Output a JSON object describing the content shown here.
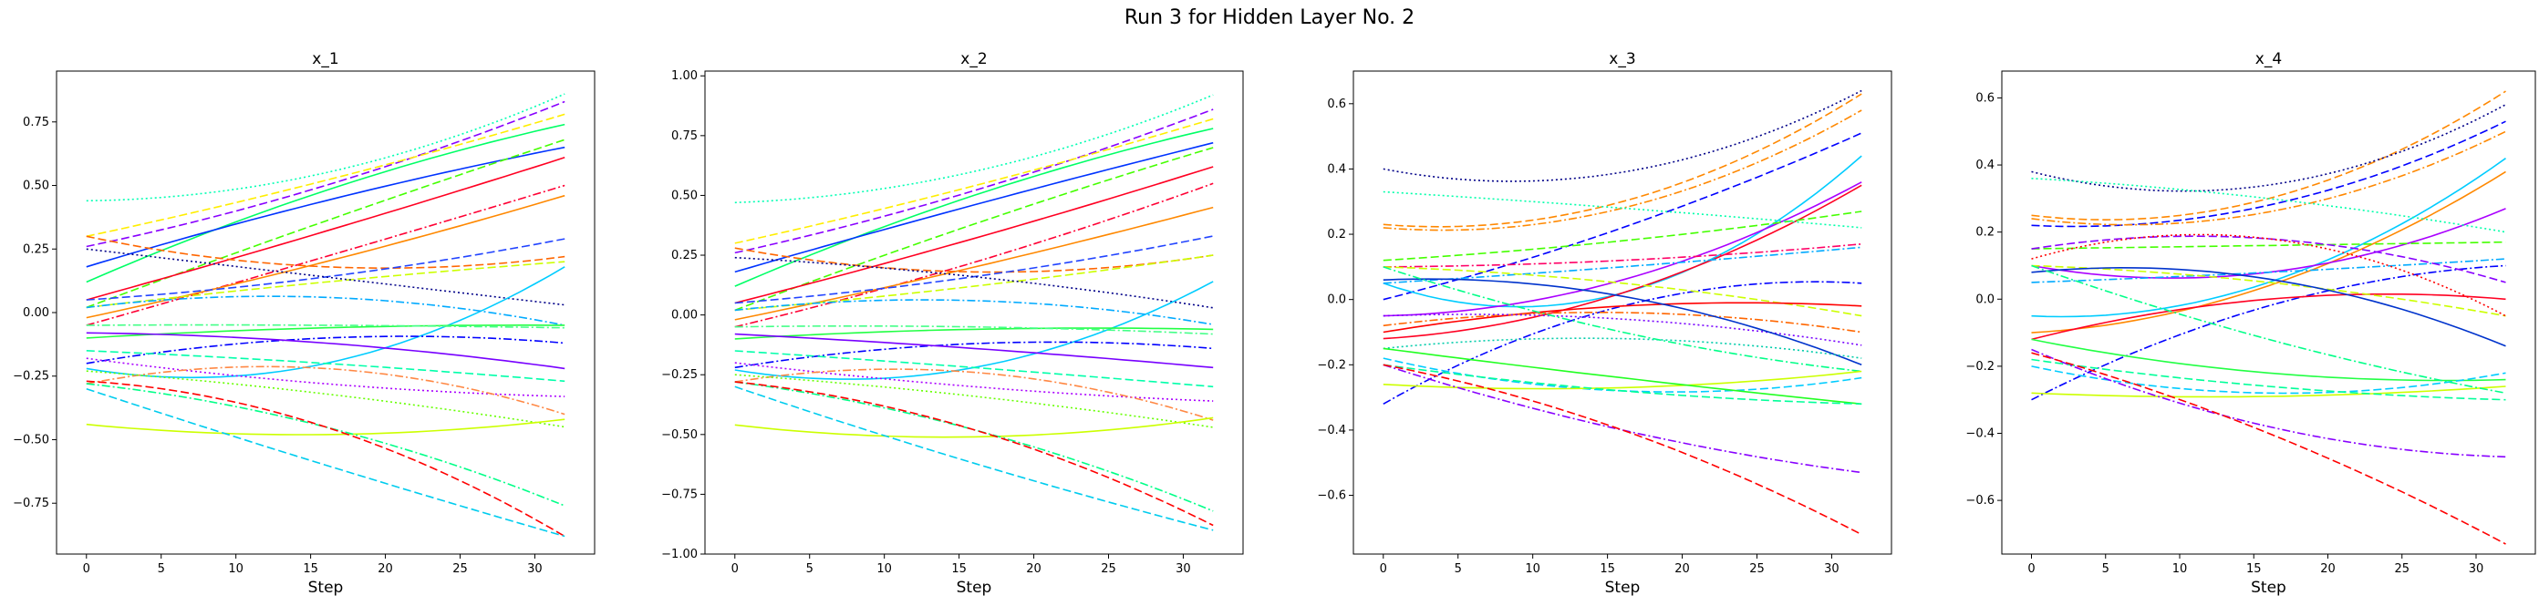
{
  "figure": {
    "title": "Run 3 for Hidden Layer No. 2"
  },
  "chart_data": [
    {
      "type": "line",
      "title": "x_1",
      "xlabel": "Step",
      "ylabel": "",
      "xlim": [
        -2,
        34
      ],
      "ylim": [
        -0.95,
        0.95
      ],
      "xticks": [
        0,
        5,
        10,
        15,
        20,
        25,
        30
      ],
      "yticks": [
        -0.75,
        -0.5,
        -0.25,
        0.0,
        0.25,
        0.5,
        0.75
      ],
      "yticklabels": [
        "−0.75",
        "−0.50",
        "−0.25",
        "0.00",
        "0.25",
        "0.50",
        "0.75"
      ],
      "grid": false,
      "legend": "none",
      "series": [
        {
          "color": "#00ffb3",
          "style": "dotted",
          "start": 0.44,
          "mid": 0.55,
          "end": 0.86
        },
        {
          "color": "#8800ff",
          "style": "dashed",
          "start": 0.26,
          "mid": 0.5,
          "end": 0.83
        },
        {
          "color": "#ffee00",
          "style": "dashed",
          "start": 0.3,
          "mid": 0.52,
          "end": 0.78
        },
        {
          "color": "#00ff66",
          "style": "solid",
          "start": 0.12,
          "mid": 0.48,
          "end": 0.74
        },
        {
          "color": "#0033ff",
          "style": "solid",
          "start": 0.18,
          "mid": 0.44,
          "end": 0.65
        },
        {
          "color": "#44ff00",
          "style": "dashed",
          "start": 0.02,
          "mid": 0.36,
          "end": 0.68
        },
        {
          "color": "#ff0022",
          "style": "solid",
          "start": 0.05,
          "mid": 0.32,
          "end": 0.61
        },
        {
          "color": "#ff0033",
          "style": "dashdot",
          "start": -0.05,
          "mid": 0.22,
          "end": 0.5
        },
        {
          "color": "#ff8800",
          "style": "solid",
          "start": -0.02,
          "mid": 0.2,
          "end": 0.46
        },
        {
          "color": "#ff6600",
          "style": "dashed",
          "start": 0.3,
          "mid": 0.18,
          "end": 0.22
        },
        {
          "color": "#2244ff",
          "style": "dashed",
          "start": 0.05,
          "mid": 0.14,
          "end": 0.29
        },
        {
          "color": "#ccff00",
          "style": "dashed",
          "start": 0.02,
          "mid": 0.12,
          "end": 0.2
        },
        {
          "color": "#000088",
          "style": "dotted",
          "start": 0.25,
          "mid": 0.14,
          "end": 0.03
        },
        {
          "color": "#00ccff",
          "style": "solid",
          "start": -0.22,
          "mid": -0.2,
          "end": 0.18
        },
        {
          "color": "#00aaff",
          "style": "dashdot",
          "start": 0.02,
          "mid": 0.06,
          "end": -0.05
        },
        {
          "color": "#22ff44",
          "style": "solid",
          "start": -0.1,
          "mid": -0.06,
          "end": -0.05
        },
        {
          "color": "#44ff88",
          "style": "dashdot",
          "start": -0.05,
          "mid": -0.05,
          "end": -0.06
        },
        {
          "color": "#0000ff",
          "style": "dashdot",
          "start": -0.2,
          "mid": -0.1,
          "end": -0.12
        },
        {
          "color": "#7700ff",
          "style": "solid",
          "start": -0.08,
          "mid": -0.12,
          "end": -0.22
        },
        {
          "color": "#00ffaa",
          "style": "dashed",
          "start": -0.15,
          "mid": -0.2,
          "end": -0.27
        },
        {
          "color": "#aa00ff",
          "style": "dotted",
          "start": -0.18,
          "mid": -0.28,
          "end": -0.33
        },
        {
          "color": "#ff8844",
          "style": "dashdot",
          "start": -0.28,
          "mid": -0.22,
          "end": -0.4
        },
        {
          "color": "#66ff00",
          "style": "dotted",
          "start": -0.23,
          "mid": -0.32,
          "end": -0.45
        },
        {
          "color": "#ccff00",
          "style": "solid",
          "start": -0.44,
          "mid": -0.48,
          "end": -0.42
        },
        {
          "color": "#00ff88",
          "style": "dashdot",
          "start": -0.28,
          "mid": -0.45,
          "end": -0.76
        },
        {
          "color": "#ff0000",
          "style": "dashed",
          "start": -0.27,
          "mid": -0.45,
          "end": -0.88
        },
        {
          "color": "#00ccee",
          "style": "dashed",
          "start": -0.3,
          "mid": -0.6,
          "end": -0.88
        }
      ]
    },
    {
      "type": "line",
      "title": "x_2",
      "xlabel": "Step",
      "ylabel": "",
      "xlim": [
        -2,
        34
      ],
      "ylim": [
        -1.0,
        1.02
      ],
      "xticks": [
        0,
        5,
        10,
        15,
        20,
        25,
        30
      ],
      "yticks": [
        -1.0,
        -0.75,
        -0.5,
        -0.25,
        0.0,
        0.25,
        0.5,
        0.75,
        1.0
      ],
      "yticklabels": [
        "−1.00",
        "−0.75",
        "−0.50",
        "−0.25",
        "0.00",
        "0.25",
        "0.50",
        "0.75",
        "1.00"
      ],
      "grid": false,
      "legend": "none",
      "series": [
        {
          "color": "#00ffb3",
          "style": "dotted",
          "start": 0.47,
          "mid": 0.6,
          "end": 0.92
        },
        {
          "color": "#8800ff",
          "style": "dashed",
          "start": 0.26,
          "mid": 0.52,
          "end": 0.86
        },
        {
          "color": "#ffee00",
          "style": "dashed",
          "start": 0.3,
          "mid": 0.54,
          "end": 0.82
        },
        {
          "color": "#00ff66",
          "style": "solid",
          "start": 0.12,
          "mid": 0.5,
          "end": 0.78
        },
        {
          "color": "#0033ff",
          "style": "solid",
          "start": 0.18,
          "mid": 0.46,
          "end": 0.72
        },
        {
          "color": "#44ff00",
          "style": "dashed",
          "start": 0.02,
          "mid": 0.38,
          "end": 0.7
        },
        {
          "color": "#ff0022",
          "style": "solid",
          "start": 0.05,
          "mid": 0.32,
          "end": 0.62
        },
        {
          "color": "#ff0033",
          "style": "dashdot",
          "start": -0.05,
          "mid": 0.22,
          "end": 0.55
        },
        {
          "color": "#ff8800",
          "style": "solid",
          "start": -0.02,
          "mid": 0.2,
          "end": 0.45
        },
        {
          "color": "#ff6600",
          "style": "dashed",
          "start": 0.28,
          "mid": 0.18,
          "end": 0.25
        },
        {
          "color": "#2244ff",
          "style": "dashed",
          "start": 0.05,
          "mid": 0.16,
          "end": 0.33
        },
        {
          "color": "#ccff00",
          "style": "dashed",
          "start": 0.02,
          "mid": 0.12,
          "end": 0.25
        },
        {
          "color": "#000088",
          "style": "dotted",
          "start": 0.24,
          "mid": 0.16,
          "end": 0.03
        },
        {
          "color": "#00ccff",
          "style": "solid",
          "start": -0.23,
          "mid": -0.22,
          "end": 0.14
        },
        {
          "color": "#00aaff",
          "style": "dashdot",
          "start": 0.02,
          "mid": 0.06,
          "end": -0.04
        },
        {
          "color": "#22ff44",
          "style": "solid",
          "start": -0.1,
          "mid": -0.06,
          "end": -0.06
        },
        {
          "color": "#44ff88",
          "style": "dashdot",
          "start": -0.05,
          "mid": -0.05,
          "end": -0.08
        },
        {
          "color": "#0000ff",
          "style": "dashdot",
          "start": -0.22,
          "mid": -0.12,
          "end": -0.14
        },
        {
          "color": "#7700ff",
          "style": "solid",
          "start": -0.08,
          "mid": -0.14,
          "end": -0.22
        },
        {
          "color": "#00ffaa",
          "style": "dashed",
          "start": -0.15,
          "mid": -0.22,
          "end": -0.3
        },
        {
          "color": "#aa00ff",
          "style": "dotted",
          "start": -0.2,
          "mid": -0.3,
          "end": -0.36
        },
        {
          "color": "#ff8844",
          "style": "dashdot",
          "start": -0.28,
          "mid": -0.24,
          "end": -0.44
        },
        {
          "color": "#66ff00",
          "style": "dotted",
          "start": -0.25,
          "mid": -0.34,
          "end": -0.47
        },
        {
          "color": "#ccff00",
          "style": "solid",
          "start": -0.46,
          "mid": -0.51,
          "end": -0.43
        },
        {
          "color": "#00ff88",
          "style": "dashdot",
          "start": -0.28,
          "mid": -0.48,
          "end": -0.82
        },
        {
          "color": "#ff0000",
          "style": "dashed",
          "start": -0.28,
          "mid": -0.48,
          "end": -0.88
        },
        {
          "color": "#00ccee",
          "style": "dashed",
          "start": -0.3,
          "mid": -0.62,
          "end": -0.9
        }
      ]
    },
    {
      "type": "line",
      "title": "x_3",
      "xlabel": "Step",
      "ylabel": "",
      "xlim": [
        -2,
        34
      ],
      "ylim": [
        -0.78,
        0.7
      ],
      "xticks": [
        0,
        5,
        10,
        15,
        20,
        25,
        30
      ],
      "yticks": [
        -0.6,
        -0.4,
        -0.2,
        0.0,
        0.2,
        0.4,
        0.6
      ],
      "yticklabels": [
        "−0.6",
        "−0.4",
        "−0.2",
        "0.0",
        "0.2",
        "0.4",
        "0.6"
      ],
      "grid": false,
      "legend": "none",
      "series": [
        {
          "color": "#ff8800",
          "style": "dashed",
          "start": 0.23,
          "mid": 0.3,
          "end": 0.63
        },
        {
          "color": "#000088",
          "style": "dotted",
          "start": 0.4,
          "mid": 0.39,
          "end": 0.64
        },
        {
          "color": "#ff8800",
          "style": "dashdot",
          "start": 0.22,
          "mid": 0.28,
          "end": 0.58
        },
        {
          "color": "#0000ff",
          "style": "dashed",
          "start": 0.0,
          "mid": 0.22,
          "end": 0.51
        },
        {
          "color": "#00ccff",
          "style": "solid",
          "start": 0.05,
          "mid": 0.02,
          "end": 0.44
        },
        {
          "color": "#aa00ff",
          "style": "solid",
          "start": -0.05,
          "mid": 0.06,
          "end": 0.36
        },
        {
          "color": "#ff0022",
          "style": "solid",
          "start": -0.12,
          "mid": 0.02,
          "end": 0.35
        },
        {
          "color": "#44ff00",
          "style": "dashed",
          "start": 0.12,
          "mid": 0.18,
          "end": 0.27
        },
        {
          "color": "#00ffaa",
          "style": "dotted",
          "start": 0.33,
          "mid": 0.28,
          "end": 0.22
        },
        {
          "color": "#ff0066",
          "style": "dashdot",
          "start": 0.1,
          "mid": 0.12,
          "end": 0.17
        },
        {
          "color": "#00aaff",
          "style": "dashdot",
          "start": 0.05,
          "mid": 0.1,
          "end": 0.16
        },
        {
          "color": "#0000ff",
          "style": "dashdot",
          "start": -0.32,
          "mid": -0.02,
          "end": 0.05
        },
        {
          "color": "#ccff00",
          "style": "dashed",
          "start": 0.1,
          "mid": 0.05,
          "end": -0.05
        },
        {
          "color": "#ff0000",
          "style": "solid",
          "start": -0.1,
          "mid": -0.02,
          "end": -0.02
        },
        {
          "color": "#ff6600",
          "style": "dashdot",
          "start": -0.08,
          "mid": -0.04,
          "end": -0.1
        },
        {
          "color": "#7700ff",
          "style": "dotted",
          "start": -0.05,
          "mid": -0.06,
          "end": -0.14
        },
        {
          "color": "#0033cc",
          "style": "solid",
          "start": 0.06,
          "mid": 0.01,
          "end": -0.2
        },
        {
          "color": "#00ccaa",
          "style": "dotted",
          "start": -0.15,
          "mid": -0.12,
          "end": -0.18
        },
        {
          "color": "#00ff88",
          "style": "dashdot",
          "start": 0.1,
          "mid": -0.1,
          "end": -0.22
        },
        {
          "color": "#00ccff",
          "style": "dashed",
          "start": -0.18,
          "mid": -0.28,
          "end": -0.24
        },
        {
          "color": "#ccff00",
          "style": "solid",
          "start": -0.26,
          "mid": -0.27,
          "end": -0.22
        },
        {
          "color": "#22ff22",
          "style": "solid",
          "start": -0.15,
          "mid": -0.24,
          "end": -0.32
        },
        {
          "color": "#00ff99",
          "style": "dashed",
          "start": -0.2,
          "mid": -0.28,
          "end": -0.32
        },
        {
          "color": "#8800ff",
          "style": "dashdot",
          "start": -0.2,
          "mid": -0.4,
          "end": -0.53
        },
        {
          "color": "#ff0000",
          "style": "dashed",
          "start": -0.2,
          "mid": -0.4,
          "end": -0.72
        }
      ]
    },
    {
      "type": "line",
      "title": "x_4",
      "xlabel": "Step",
      "ylabel": "",
      "xlim": [
        -2,
        34
      ],
      "ylim": [
        -0.76,
        0.68
      ],
      "xticks": [
        0,
        5,
        10,
        15,
        20,
        25,
        30
      ],
      "yticks": [
        -0.6,
        -0.4,
        -0.2,
        0.0,
        0.2,
        0.4,
        0.6
      ],
      "yticklabels": [
        "−0.6",
        "−0.4",
        "−0.2",
        "0.0",
        "0.2",
        "0.4",
        "0.6"
      ],
      "grid": false,
      "legend": "none",
      "series": [
        {
          "color": "#ff8800",
          "style": "dashed",
          "start": 0.25,
          "mid": 0.3,
          "end": 0.62
        },
        {
          "color": "#000088",
          "style": "dotted",
          "start": 0.38,
          "mid": 0.34,
          "end": 0.58
        },
        {
          "color": "#0000ff",
          "style": "dashed",
          "start": 0.22,
          "mid": 0.28,
          "end": 0.53
        },
        {
          "color": "#ff8800",
          "style": "dashdot",
          "start": 0.24,
          "mid": 0.26,
          "end": 0.5
        },
        {
          "color": "#00ccff",
          "style": "solid",
          "start": -0.05,
          "mid": 0.05,
          "end": 0.42
        },
        {
          "color": "#ff8800",
          "style": "solid",
          "start": -0.1,
          "mid": 0.04,
          "end": 0.38
        },
        {
          "color": "#aa00ff",
          "style": "solid",
          "start": 0.1,
          "mid": 0.08,
          "end": 0.27
        },
        {
          "color": "#00ffaa",
          "style": "dotted",
          "start": 0.36,
          "mid": 0.3,
          "end": 0.2
        },
        {
          "color": "#44ff00",
          "style": "dashed",
          "start": 0.15,
          "mid": 0.16,
          "end": 0.17
        },
        {
          "color": "#00aaff",
          "style": "dashdot",
          "start": 0.05,
          "mid": 0.08,
          "end": 0.12
        },
        {
          "color": "#0000ff",
          "style": "dashdot",
          "start": -0.3,
          "mid": -0.02,
          "end": 0.1
        },
        {
          "color": "#8800ff",
          "style": "dashed",
          "start": 0.15,
          "mid": 0.18,
          "end": 0.05
        },
        {
          "color": "#ff0022",
          "style": "solid",
          "start": -0.12,
          "mid": 0.0,
          "end": 0.0
        },
        {
          "color": "#ccff00",
          "style": "dashed",
          "start": 0.1,
          "mid": 0.05,
          "end": -0.05
        },
        {
          "color": "#ff0000",
          "style": "dotted",
          "start": 0.12,
          "mid": 0.18,
          "end": -0.05
        },
        {
          "color": "#0033cc",
          "style": "solid",
          "start": 0.08,
          "mid": 0.06,
          "end": -0.14
        },
        {
          "color": "#22ff44",
          "style": "solid",
          "start": -0.12,
          "mid": -0.22,
          "end": -0.24
        },
        {
          "color": "#00ccff",
          "style": "dashed",
          "start": -0.2,
          "mid": -0.28,
          "end": -0.22
        },
        {
          "color": "#ccff00",
          "style": "solid",
          "start": -0.28,
          "mid": -0.29,
          "end": -0.26
        },
        {
          "color": "#00ff88",
          "style": "dashdot",
          "start": 0.1,
          "mid": -0.12,
          "end": -0.28
        },
        {
          "color": "#00ff99",
          "style": "dashed",
          "start": -0.18,
          "mid": -0.26,
          "end": -0.3
        },
        {
          "color": "#8800ff",
          "style": "dashdot",
          "start": -0.15,
          "mid": -0.38,
          "end": -0.47
        },
        {
          "color": "#ff0000",
          "style": "dashed",
          "start": -0.16,
          "mid": -0.4,
          "end": -0.73
        }
      ]
    }
  ]
}
